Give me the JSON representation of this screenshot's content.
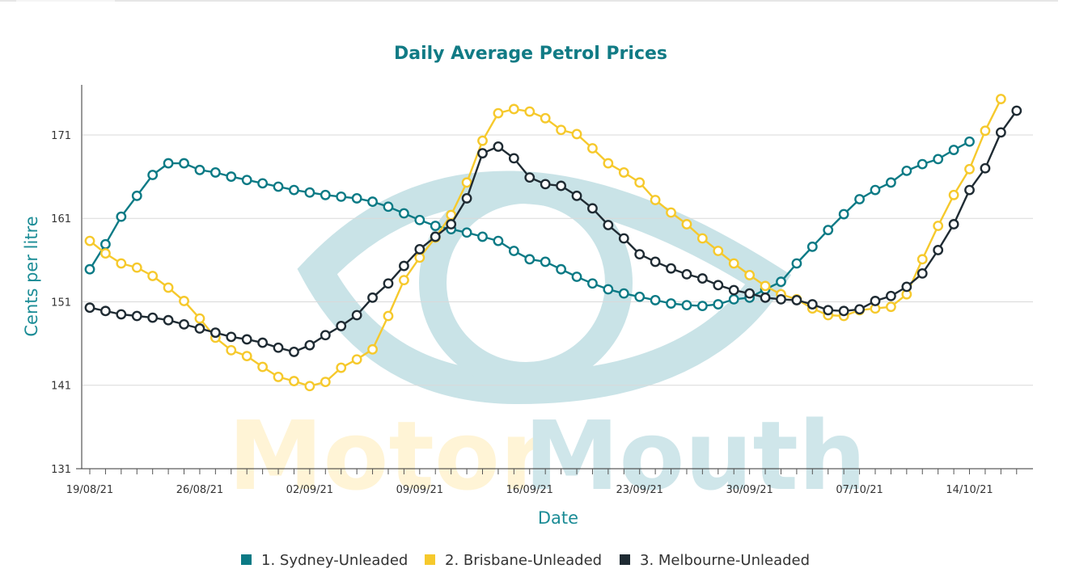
{
  "colors": {
    "sydney": "#0b7a85",
    "brisbane": "#f6c92c",
    "melbourne": "#1f2b33",
    "watermark_eye": "#c9e3e7",
    "watermark_motor": "#fff4d6",
    "watermark_mouth": "#cfe6ea"
  },
  "watermark": {
    "motor": "Motor",
    "mouth": "Mouth",
    "icon": "eye-logo-icon"
  },
  "chart_data": {
    "type": "line",
    "title": "Daily Average Petrol Prices",
    "xlabel": "Date",
    "ylabel": "Cents per litre",
    "ylim": [
      131,
      177
    ],
    "yticks": [
      131,
      141,
      151,
      161,
      171
    ],
    "xticks": [
      {
        "i": 0,
        "label": "19/08/21"
      },
      {
        "i": 7,
        "label": "26/08/21"
      },
      {
        "i": 14,
        "label": "02/09/21"
      },
      {
        "i": 21,
        "label": "09/09/21"
      },
      {
        "i": 28,
        "label": "16/09/21"
      },
      {
        "i": 35,
        "label": "23/09/21"
      },
      {
        "i": 42,
        "label": "30/09/21"
      },
      {
        "i": 49,
        "label": "07/10/21"
      },
      {
        "i": 56,
        "label": "14/10/21"
      }
    ],
    "grid": true,
    "legend": "bottom",
    "series": [
      {
        "name": "1. Sydney-Unleaded",
        "values": [
          154.9,
          157.9,
          161.2,
          163.7,
          166.2,
          167.6,
          167.6,
          166.8,
          166.5,
          166.0,
          165.6,
          165.2,
          164.8,
          164.4,
          164.1,
          163.8,
          163.6,
          163.4,
          163.0,
          162.4,
          161.6,
          160.8,
          160.1,
          159.7,
          159.3,
          158.8,
          158.3,
          157.1,
          156.1,
          155.8,
          154.9,
          154.0,
          153.2,
          152.5,
          152.0,
          151.6,
          151.2,
          150.8,
          150.6,
          150.5,
          150.7,
          151.3,
          151.5,
          152.5,
          153.4,
          155.6,
          157.6,
          159.6,
          161.5,
          163.3,
          164.4,
          165.3,
          166.7,
          167.5,
          168.1,
          169.2,
          170.2
        ]
      },
      {
        "name": "2. Brisbane-Unleaded",
        "values": [
          158.3,
          156.8,
          155.6,
          155.1,
          154.1,
          152.7,
          151.1,
          149.0,
          146.7,
          145.2,
          144.5,
          143.2,
          142.0,
          141.5,
          140.9,
          141.4,
          143.1,
          144.1,
          145.3,
          149.3,
          153.6,
          156.3,
          158.7,
          161.4,
          165.3,
          170.3,
          173.6,
          174.1,
          173.8,
          173.0,
          171.6,
          171.1,
          169.4,
          167.6,
          166.5,
          165.3,
          163.2,
          161.7,
          160.3,
          158.6,
          157.1,
          155.6,
          154.2,
          152.9,
          151.9,
          151.3,
          150.2,
          149.4,
          149.3,
          150.0,
          150.2,
          150.4,
          151.9,
          156.1,
          160.1,
          163.8,
          166.9,
          171.5,
          175.3
        ]
      },
      {
        "name": "3. Melbourne-Unleaded",
        "values": [
          150.3,
          149.9,
          149.5,
          149.3,
          149.1,
          148.8,
          148.3,
          147.8,
          147.3,
          146.8,
          146.5,
          146.1,
          145.5,
          145.0,
          145.8,
          147.0,
          148.1,
          149.4,
          151.5,
          153.2,
          155.3,
          157.3,
          158.8,
          160.3,
          163.4,
          168.8,
          169.6,
          168.2,
          165.9,
          165.1,
          164.9,
          163.7,
          162.2,
          160.2,
          158.6,
          156.7,
          155.8,
          155.0,
          154.3,
          153.8,
          153.0,
          152.4,
          152.0,
          151.5,
          151.3,
          151.2,
          150.7,
          150.0,
          149.9,
          150.1,
          151.1,
          151.7,
          152.8,
          154.4,
          157.2,
          160.3,
          164.4,
          167.0,
          171.3,
          173.9
        ]
      }
    ]
  }
}
